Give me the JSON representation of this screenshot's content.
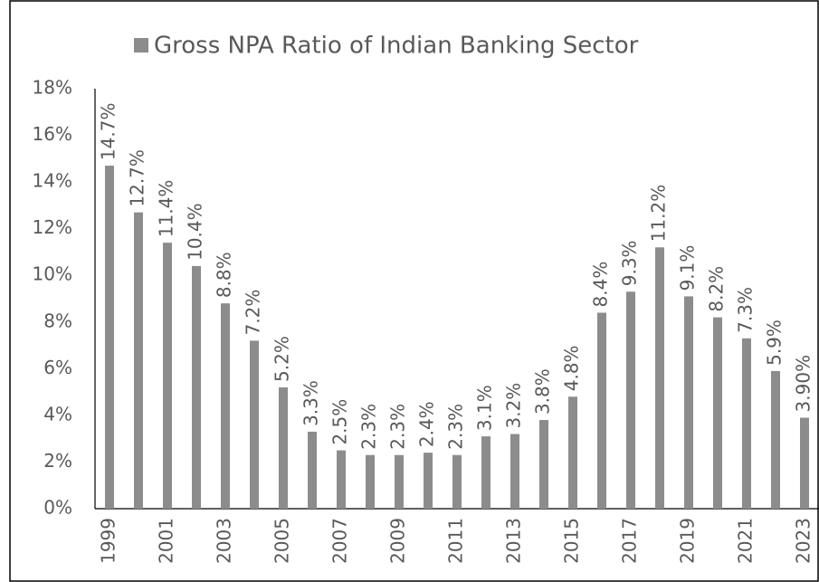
{
  "chart_data": {
    "type": "bar",
    "categories": [
      "1999",
      null,
      "2001",
      null,
      "2003",
      null,
      "2005",
      null,
      "2007",
      null,
      "2009",
      null,
      "2011",
      null,
      "2013",
      null,
      "2015",
      null,
      "2017",
      null,
      "2019",
      null,
      "2021",
      null,
      "2023"
    ],
    "series": [
      {
        "name": "Gross NPA Ratio of Indian Banking Sector",
        "color": "#8c8c8c",
        "values": [
          14.7,
          12.7,
          11.4,
          10.4,
          8.8,
          7.2,
          5.2,
          3.3,
          2.5,
          2.3,
          2.3,
          2.4,
          2.3,
          3.1,
          3.2,
          3.8,
          4.8,
          8.4,
          9.3,
          11.2,
          9.1,
          8.2,
          7.3,
          5.9,
          3.9
        ],
        "value_labels": [
          "14.7%",
          "12.7%",
          "11.4%",
          "10.4%",
          "8.8%",
          "7.2%",
          "5.2%",
          "3.3%",
          "2.5%",
          "2.3%",
          "2.3%",
          "2.4%",
          "2.3%",
          "3.1%",
          "3.2%",
          "3.8%",
          "4.8%",
          "8.4%",
          "9.3%",
          "11.2%",
          "9.1%",
          "8.2%",
          "7.3%",
          "5.9%",
          "3.90%"
        ]
      }
    ],
    "ylim": [
      0,
      18
    ],
    "yticks": [
      {
        "value": 0,
        "label": "0%"
      },
      {
        "value": 2,
        "label": "2%"
      },
      {
        "value": 4,
        "label": "4%"
      },
      {
        "value": 6,
        "label": "6%"
      },
      {
        "value": 8,
        "label": "8%"
      },
      {
        "value": 10,
        "label": "10%"
      },
      {
        "value": 12,
        "label": "12%"
      },
      {
        "value": 14,
        "label": "14%"
      },
      {
        "value": 16,
        "label": "16%"
      },
      {
        "value": 18,
        "label": "18%"
      }
    ],
    "grid": false,
    "legend": "top"
  }
}
